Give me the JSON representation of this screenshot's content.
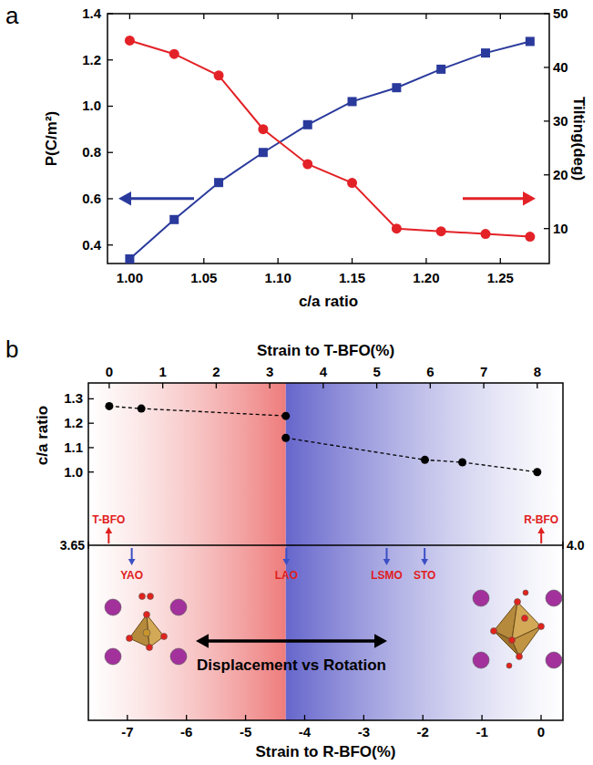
{
  "chart_data": [
    {
      "type": "line",
      "panel": "a",
      "xlabel": "c/a ratio",
      "ylabel": "P(C/m²)",
      "y2label": "Tilting(deg)",
      "x": [
        1.0,
        1.03,
        1.06,
        1.09,
        1.12,
        1.15,
        1.18,
        1.21,
        1.24,
        1.27
      ],
      "xlim": [
        0.985,
        1.283
      ],
      "xticks": [
        {
          "value": 1,
          "label": "1.00"
        },
        1.05,
        {
          "value": 1.1,
          "label": "1.10"
        },
        1.15,
        {
          "value": 1.2,
          "label": "1.20"
        },
        1.25
      ],
      "ylim": [
        0.32,
        1.4
      ],
      "yticks": [
        0.4,
        0.6,
        0.8,
        {
          "value": 1,
          "label": "1.0"
        },
        1.2,
        1.4
      ],
      "y2lim": [
        3.5,
        50
      ],
      "y2ticks": [
        10,
        20,
        30,
        40,
        50
      ],
      "series": [
        {
          "color": "#2a3a9c",
          "marker": "square",
          "values": [
            0.34,
            0.51,
            0.67,
            0.8,
            0.92,
            1.02,
            1.08,
            1.16,
            1.23,
            1.28
          ]
        },
        {
          "color": "#e32228",
          "marker": "circle",
          "axis": "y2",
          "values": [
            45,
            42.5,
            38.5,
            28.5,
            22,
            18.5,
            10,
            9.5,
            9,
            8.5
          ]
        }
      ]
    },
    {
      "type": "line",
      "panel": "b",
      "xlabel": "Strain to T-BFO(%)",
      "x2label": "Strain to R-BFO(%)",
      "ylabel": "c/a ratio",
      "x": [
        0,
        0.6,
        3.3,
        3.3,
        3.3,
        5.9,
        6.6,
        8.0
      ],
      "xlim": [
        -0.39,
        8.48
      ],
      "xticks": [
        0,
        1,
        2,
        3,
        4,
        5,
        6,
        7,
        8
      ],
      "x2lim": [
        -7.66,
        0.37
      ],
      "x2ticks": [
        -7,
        -6,
        -5,
        -4,
        -3,
        -2,
        -1,
        0
      ],
      "x3lim": [
        3.65,
        4.0
      ],
      "x3ticks": [
        3.65,
        {
          "value": 4,
          "label": "4.0"
        }
      ],
      "ylim": [
        0.7,
        1.365
      ],
      "yticks": [
        {
          "value": 1,
          "label": "1.0"
        },
        1.1,
        1.2,
        1.3
      ],
      "series": [
        {
          "color": "#000000",
          "marker": "circle",
          "line_style": "dashed",
          "values": [
            1.27,
            1.26,
            1.23,
            null,
            1.14,
            1.05,
            1.04,
            1.0
          ]
        }
      ],
      "regions": [
        {
          "from": -0.39,
          "to": 3.3,
          "color": "#ee7c7c"
        },
        {
          "from": 3.3,
          "to": 8.48,
          "color": "#6666cc"
        }
      ],
      "references": [
        {
          "label": "T-BFO",
          "value": 3.665
        },
        {
          "label": "R-BFO",
          "value": 3.984
        }
      ],
      "substrates": [
        {
          "label": "YAO",
          "value": 3.682
        },
        {
          "label": "LAO",
          "value": 3.796
        },
        {
          "label": "LSMO",
          "value": 3.87
        },
        {
          "label": "STO",
          "value": 3.898
        }
      ],
      "annotation": "Displacement vs Rotation"
    }
  ]
}
